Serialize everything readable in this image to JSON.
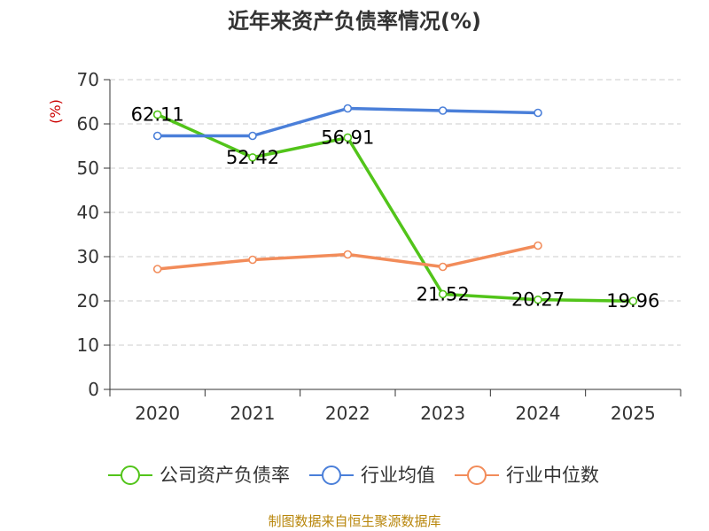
{
  "chart_data": {
    "type": "line",
    "title": "近年来资产负债率情况(%)",
    "ylabel": "(%)",
    "xlabel": "",
    "categories": [
      "2020",
      "2021",
      "2022",
      "2023",
      "2024",
      "2025"
    ],
    "ylim": [
      0,
      70
    ],
    "yticks": [
      0,
      10,
      20,
      30,
      40,
      50,
      60,
      70
    ],
    "grid": true,
    "legend_position": "bottom",
    "series": [
      {
        "name": "公司资产负债率",
        "color": "#52c41a",
        "values": [
          62.11,
          52.42,
          56.91,
          21.52,
          20.27,
          19.96
        ],
        "show_labels": true
      },
      {
        "name": "行业均值",
        "color": "#4a7fd9",
        "values": [
          57.3,
          57.3,
          63.5,
          63.0,
          62.5,
          null
        ],
        "show_labels": false
      },
      {
        "name": "行业中位数",
        "color": "#f28c5a",
        "values": [
          27.2,
          29.3,
          30.5,
          27.7,
          32.5,
          null
        ],
        "show_labels": false
      }
    ],
    "source": "制图数据来自恒生聚源数据库"
  }
}
